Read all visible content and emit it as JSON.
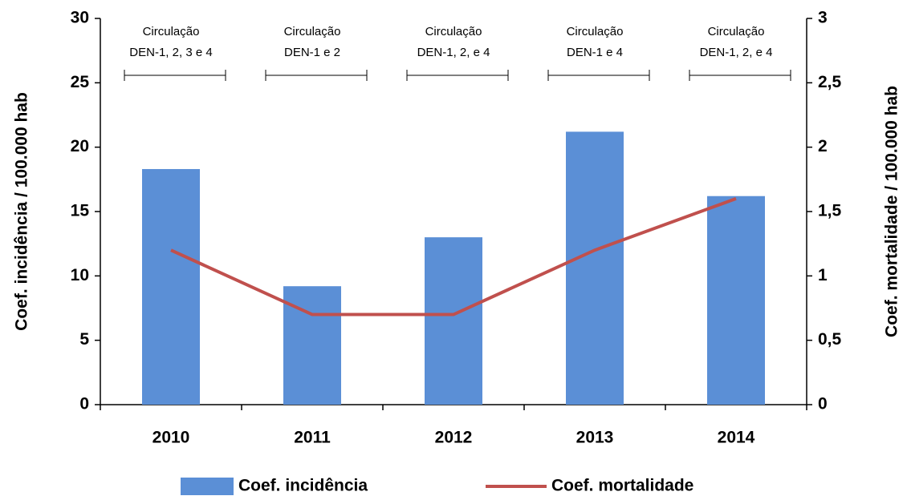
{
  "chart_data": {
    "type": "bar",
    "categories": [
      "2010",
      "2011",
      "2012",
      "2013",
      "2014"
    ],
    "series": [
      {
        "name": "Coef. incidência",
        "type": "bar",
        "color": "#5b8fd6",
        "values": [
          18.3,
          9.2,
          13.0,
          21.2,
          16.2
        ]
      },
      {
        "name": "Coef. mortalidade",
        "type": "line",
        "axis": "y2",
        "color": "#c0504d",
        "values": [
          1.2,
          0.7,
          0.7,
          1.2,
          1.6
        ]
      }
    ],
    "ylabel": "Coef. incidência / 100.000 hab",
    "y2label": "Coef. mortalidade / 100.000 hab",
    "ylim": [
      0,
      30
    ],
    "yticks": [
      0,
      5,
      10,
      15,
      20,
      25,
      30
    ],
    "y2lim": [
      0,
      3
    ],
    "y2ticks": [
      0,
      {
        "value": 0.5,
        "label": "0,5"
      },
      1,
      {
        "value": 1.5,
        "label": "1,5"
      },
      2,
      {
        "value": 2.5,
        "label": "2,5"
      },
      3
    ],
    "annotations": [
      [
        "Circulação",
        "DEN-1, 2, 3 e 4"
      ],
      [
        "Circulação",
        "DEN-1 e 2"
      ],
      [
        "Circulação",
        "DEN-1, 2, e 4"
      ],
      [
        "Circulação",
        "DEN-1 e 4"
      ],
      [
        "Circulação",
        "DEN-1, 2, e 4"
      ]
    ],
    "legend": "bottom"
  }
}
